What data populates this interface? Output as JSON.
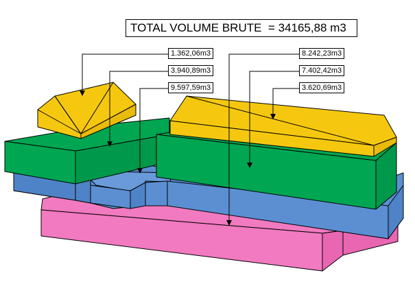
{
  "colors": {
    "roof": "#f5c80f",
    "upper_level": "#00a651",
    "middle_level": "#5b8fd2",
    "ground_level": "#f17ac0",
    "outline": "#000000"
  },
  "total": {
    "label": "TOTAL VOLUME BRUTE",
    "equals": "=",
    "value": "34165,88 m3"
  },
  "volumes": [
    {
      "id": "left-roof",
      "value": "1.362,06m3"
    },
    {
      "id": "left-green",
      "value": "3.940,89m3"
    },
    {
      "id": "left-blue",
      "value": "9.597,59m3"
    },
    {
      "id": "pink-base",
      "value": "8.242,23m3"
    },
    {
      "id": "right-green",
      "value": "7.402,42m3"
    },
    {
      "id": "right-roof",
      "value": "3.620,69m3"
    }
  ]
}
